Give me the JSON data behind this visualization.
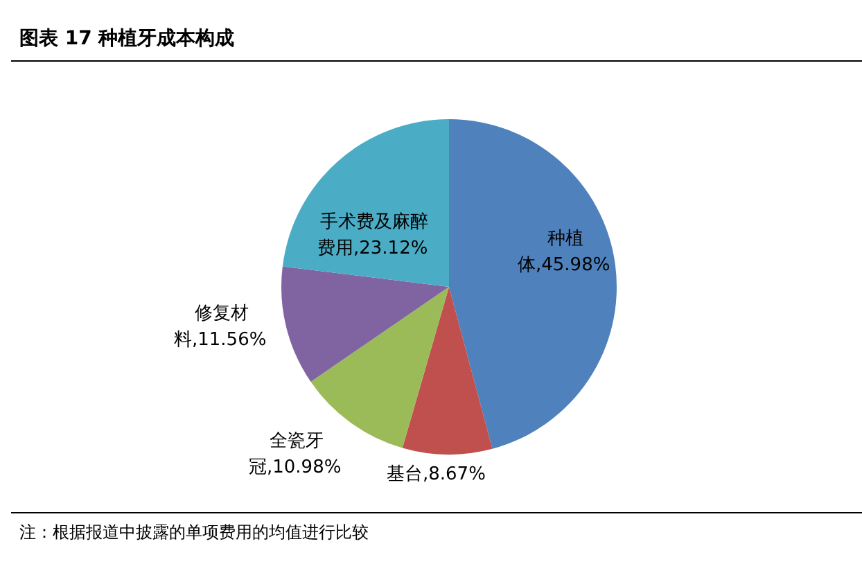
{
  "chart_data": {
    "type": "pie",
    "title": "图表 17 种植牙成本构成",
    "categories": [
      "种植体",
      "基台",
      "全瓷牙冠",
      "修复材料",
      "手术费及麻醉费用"
    ],
    "values": [
      45.98,
      8.67,
      10.98,
      11.56,
      23.12
    ],
    "colors": [
      "#4f81bd",
      "#c0504d",
      "#9bbb59",
      "#8064a2",
      "#4bacc6"
    ],
    "value_labels": [
      ",45.98%",
      ",8.67%",
      ",10.98%",
      ",11.56%",
      ",23.12%"
    ],
    "annotations": [
      "注：根据报道中披露的单项费用的均值进行比较"
    ]
  }
}
